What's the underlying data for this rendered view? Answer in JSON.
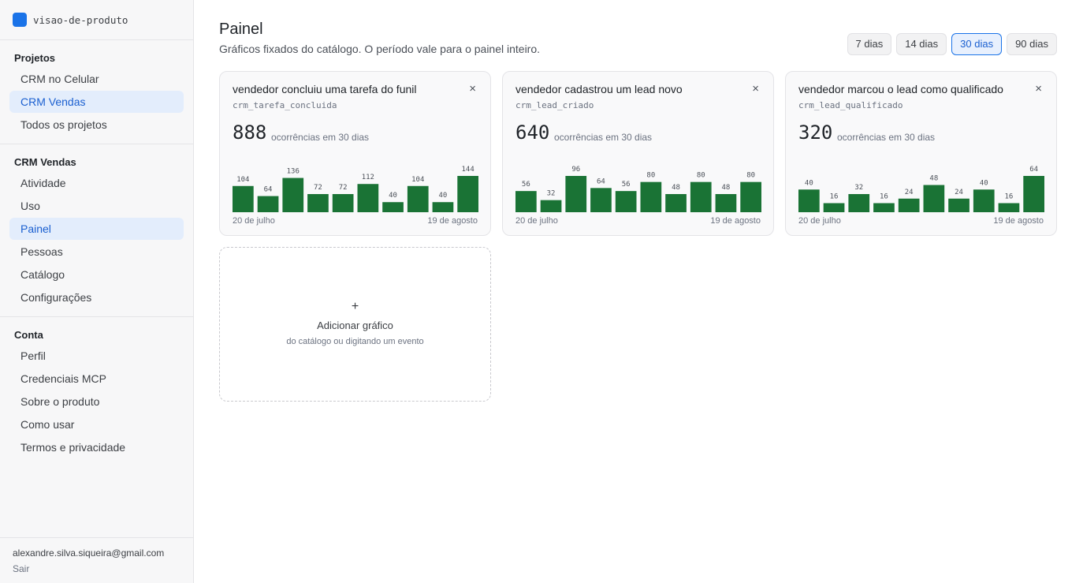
{
  "brand": {
    "name": "visao-de-produto",
    "color": "#1a73e8"
  },
  "sidebar": {
    "sections": [
      {
        "title": "Projetos",
        "items": [
          {
            "label": "CRM no Celular",
            "active": false
          },
          {
            "label": "CRM Vendas",
            "active": true
          },
          {
            "label": "Todos os projetos",
            "active": false
          }
        ]
      },
      {
        "title": "CRM Vendas",
        "items": [
          {
            "label": "Atividade",
            "active": false
          },
          {
            "label": "Uso",
            "active": false
          },
          {
            "label": "Painel",
            "active": true
          },
          {
            "label": "Pessoas",
            "active": false
          },
          {
            "label": "Catálogo",
            "active": false
          },
          {
            "label": "Configurações",
            "active": false
          }
        ]
      },
      {
        "title": "Conta",
        "items": [
          {
            "label": "Perfil",
            "active": false
          },
          {
            "label": "Credenciais MCP",
            "active": false
          },
          {
            "label": "Sobre o produto",
            "active": false
          },
          {
            "label": "Como usar",
            "active": false
          },
          {
            "label": "Termos e privacidade",
            "active": false
          }
        ]
      }
    ],
    "footer": {
      "email": "alexandre.silva.siqueira@gmail.com",
      "signout": "Sair"
    }
  },
  "header": {
    "title": "Painel",
    "subtitle": "Gráficos fixados do catálogo. O período vale para o painel inteiro.",
    "periods": [
      {
        "label": "7 dias",
        "active": false
      },
      {
        "label": "14 dias",
        "active": false
      },
      {
        "label": "30 dias",
        "active": true
      },
      {
        "label": "90 dias",
        "active": false
      }
    ]
  },
  "colors": {
    "bar": "#1a7335",
    "accent": "#1a73e8"
  },
  "cards": [
    {
      "title": "vendedor concluiu uma tarefa do funil",
      "event": "crm_tarefa_concluida",
      "total": "888",
      "total_label": "ocorrências em 30 dias",
      "date_start": "20 de julho",
      "date_end": "19 de agosto",
      "close": "×"
    },
    {
      "title": "vendedor cadastrou um lead novo",
      "event": "crm_lead_criado",
      "total": "640",
      "total_label": "ocorrências em 30 dias",
      "date_start": "20 de julho",
      "date_end": "19 de agosto",
      "close": "×"
    },
    {
      "title": "vendedor marcou o lead como qualificado",
      "event": "crm_lead_qualificado",
      "total": "320",
      "total_label": "ocorrências em 30 dias",
      "date_start": "20 de julho",
      "date_end": "19 de agosto",
      "close": "×"
    }
  ],
  "chart_data": [
    {
      "type": "bar",
      "values": [
        104,
        64,
        136,
        72,
        72,
        112,
        40,
        104,
        40,
        144
      ]
    },
    {
      "type": "bar",
      "values": [
        56,
        32,
        96,
        64,
        56,
        80,
        48,
        80,
        48,
        80
      ]
    },
    {
      "type": "bar",
      "values": [
        40,
        16,
        32,
        16,
        24,
        48,
        24,
        40,
        16,
        64
      ]
    }
  ],
  "add_chart": {
    "plus": "+",
    "title": "Adicionar gráfico",
    "subtitle": "do catálogo ou digitando um evento"
  }
}
